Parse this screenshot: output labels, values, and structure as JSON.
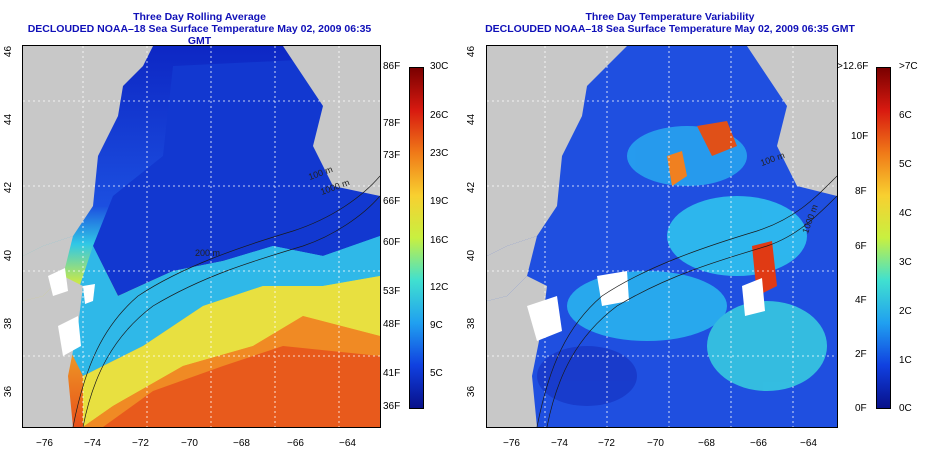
{
  "left_panel": {
    "title": "Three Day Rolling Average",
    "subtitle": "DECLOUDED NOAA–18 Sea Surface Temperature May 02, 2009 06:35 GMT",
    "colorbar_f_labels": [
      "86F",
      "78F",
      "73F",
      "66F",
      "60F",
      "53F",
      "48F",
      "41F",
      "36F"
    ],
    "colorbar_c_labels": [
      "30C",
      "26C",
      "23C",
      "19C",
      "16C",
      "12C",
      "9C",
      "5C"
    ]
  },
  "right_panel": {
    "title": "Three Day Temperature Variability",
    "subtitle": "DECLOUDED NOAA–18 Sea Surface Temperature May 02, 2009 06:35 GMT",
    "colorbar_f_labels": [
      ">12.6F",
      "10F",
      "8F",
      "6F",
      "4F",
      "2F",
      "0F"
    ],
    "colorbar_c_labels": [
      ">7C",
      "6C",
      "5C",
      "4C",
      "3C",
      "2C",
      "1C",
      "0C"
    ]
  },
  "axes": {
    "x_ticks": [
      "−76",
      "−74",
      "−72",
      "−70",
      "−68",
      "−66",
      "−64"
    ],
    "y_ticks": [
      "36",
      "38",
      "40",
      "42",
      "44",
      "46"
    ]
  },
  "contour_labels": [
    "100 m",
    "1000 m",
    "200 m"
  ],
  "colors": {
    "land": "#c8c8c8",
    "title": "#1010b8",
    "sst_cold": "#0a1fbf",
    "sst_warm": "#e8501a"
  }
}
